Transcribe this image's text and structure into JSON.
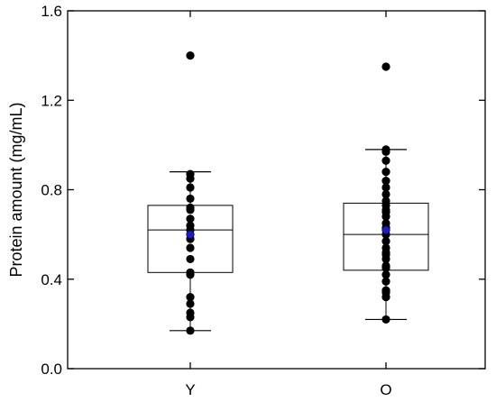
{
  "chart_data": {
    "type": "box",
    "categories": [
      "Y",
      "O"
    ],
    "ylabel": "Protein amount (mg/mL)",
    "xlabel": "",
    "ylim": [
      0.0,
      1.6
    ],
    "yticks": [
      "0.0",
      "0.4",
      "0.8",
      "1.2",
      "1.6"
    ],
    "grid": false,
    "legend": "none",
    "boxes": [
      {
        "category": "Y",
        "whisker_low": 0.17,
        "q1": 0.43,
        "median": 0.62,
        "q3": 0.73,
        "whisker_high": 0.88,
        "mean": 0.6,
        "points": [
          0.17,
          0.23,
          0.25,
          0.29,
          0.32,
          0.42,
          0.43,
          0.49,
          0.54,
          0.58,
          0.6,
          0.62,
          0.64,
          0.67,
          0.71,
          0.72,
          0.76,
          0.81,
          0.85,
          0.87,
          1.4
        ]
      },
      {
        "category": "O",
        "whisker_low": 0.22,
        "q1": 0.44,
        "median": 0.6,
        "q3": 0.74,
        "whisker_high": 0.98,
        "mean": 0.62,
        "points": [
          0.22,
          0.32,
          0.34,
          0.35,
          0.39,
          0.42,
          0.45,
          0.46,
          0.49,
          0.51,
          0.52,
          0.54,
          0.57,
          0.6,
          0.62,
          0.63,
          0.65,
          0.68,
          0.7,
          0.71,
          0.73,
          0.75,
          0.78,
          0.81,
          0.84,
          0.88,
          0.93,
          0.97,
          0.98,
          1.35
        ]
      }
    ],
    "colors": {
      "points": "#000000",
      "mean": "#1a1ad6",
      "box": "#000000"
    }
  }
}
